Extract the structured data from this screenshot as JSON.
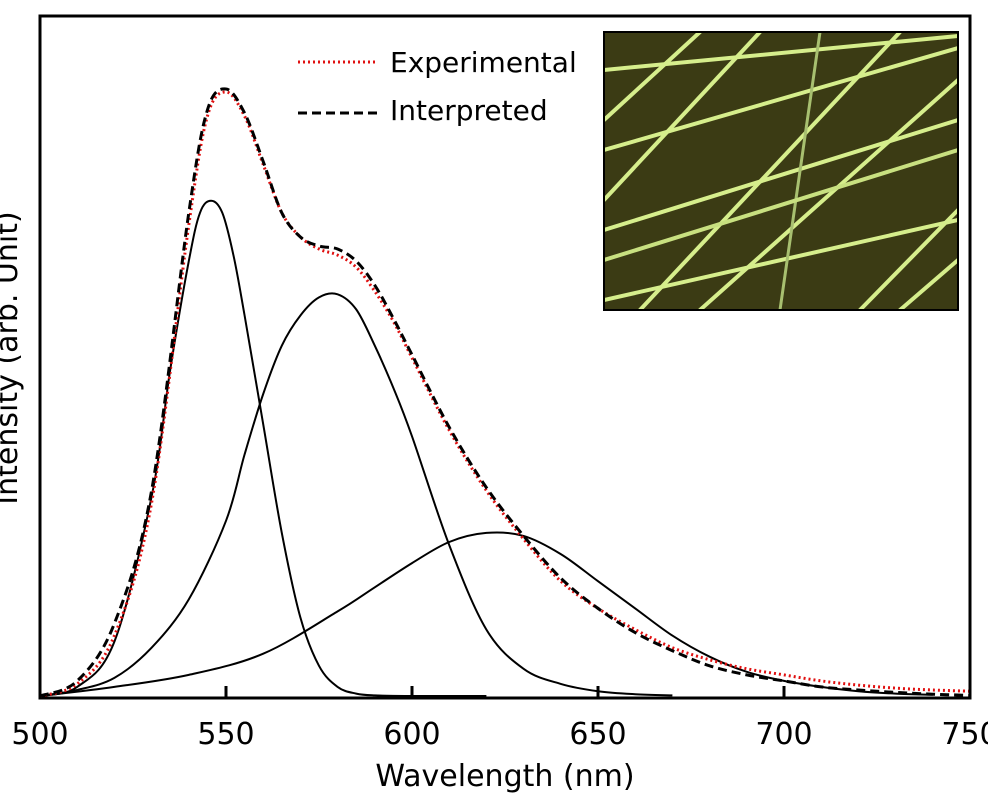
{
  "chart_data": {
    "type": "line",
    "title": "",
    "xlabel": "Wavelength (nm)",
    "ylabel": "Intensity (arb. Unit)",
    "xlim": [
      500,
      750
    ],
    "ylim": [
      0,
      1.04
    ],
    "xticks": [
      500,
      550,
      600,
      650,
      700,
      750
    ],
    "xtick_labels": [
      "500",
      "550",
      "600",
      "650",
      "700",
      "750"
    ],
    "yticks_shown": false,
    "grid": false,
    "legend": {
      "position": "top-center",
      "entries": [
        "Experimental",
        "Interpreted"
      ]
    },
    "inset": {
      "description_type": "micrograph",
      "colors": [
        "#3a3a12",
        "#d8f08a"
      ]
    },
    "series": [
      {
        "name": "Experimental",
        "style": "dotted",
        "color": "#e01010",
        "x": [
          500,
          510,
          520,
          530,
          540,
          545,
          550,
          555,
          560,
          565,
          570,
          575,
          580,
          585,
          590,
          595,
          600,
          610,
          620,
          630,
          640,
          650,
          660,
          670,
          680,
          690,
          700,
          710,
          720,
          730,
          740,
          750
        ],
        "y": [
          0.0,
          0.02,
          0.1,
          0.32,
          0.78,
          0.96,
          1.0,
          0.96,
          0.88,
          0.8,
          0.76,
          0.74,
          0.73,
          0.71,
          0.67,
          0.62,
          0.56,
          0.44,
          0.34,
          0.26,
          0.19,
          0.145,
          0.11,
          0.08,
          0.06,
          0.045,
          0.035,
          0.025,
          0.018,
          0.013,
          0.01,
          0.008
        ]
      },
      {
        "name": "Interpreted",
        "style": "dashed",
        "color": "#000000",
        "x": [
          500,
          510,
          520,
          530,
          540,
          545,
          550,
          555,
          560,
          565,
          570,
          575,
          580,
          585,
          590,
          595,
          600,
          610,
          620,
          630,
          640,
          650,
          660,
          670,
          680,
          690,
          700,
          710,
          720,
          730,
          740,
          750
        ],
        "y": [
          0.0,
          0.025,
          0.12,
          0.34,
          0.8,
          0.97,
          1.005,
          0.965,
          0.885,
          0.8,
          0.76,
          0.745,
          0.74,
          0.72,
          0.68,
          0.625,
          0.565,
          0.445,
          0.345,
          0.265,
          0.195,
          0.145,
          0.105,
          0.075,
          0.05,
          0.035,
          0.025,
          0.015,
          0.01,
          0.006,
          0.003,
          0.001
        ]
      },
      {
        "name": "",
        "style": "solid",
        "color": "#000000",
        "x": [
          500,
          510,
          520,
          530,
          535,
          540,
          543,
          546,
          549,
          552,
          555,
          560,
          565,
          570,
          575,
          580,
          585,
          590,
          600,
          610,
          620
        ],
        "y": [
          0.0,
          0.015,
          0.09,
          0.33,
          0.54,
          0.72,
          0.8,
          0.82,
          0.8,
          0.73,
          0.63,
          0.45,
          0.27,
          0.13,
          0.05,
          0.015,
          0.004,
          0.001,
          0.0,
          0.0,
          0.0
        ]
      },
      {
        "name": "",
        "style": "solid",
        "color": "#000000",
        "x": [
          500,
          510,
          520,
          530,
          540,
          550,
          555,
          560,
          565,
          570,
          575,
          580,
          585,
          590,
          595,
          600,
          610,
          620,
          630,
          640,
          650,
          660,
          670
        ],
        "y": [
          0.0,
          0.01,
          0.03,
          0.08,
          0.16,
          0.29,
          0.4,
          0.5,
          0.58,
          0.63,
          0.66,
          0.665,
          0.64,
          0.58,
          0.51,
          0.43,
          0.25,
          0.11,
          0.045,
          0.02,
          0.008,
          0.003,
          0.001
        ]
      },
      {
        "name": "",
        "style": "solid",
        "color": "#000000",
        "x": [
          500,
          520,
          540,
          560,
          580,
          590,
          600,
          610,
          620,
          630,
          640,
          650,
          660,
          670,
          680,
          690,
          700,
          710,
          720,
          730,
          740
        ],
        "y": [
          0.0,
          0.015,
          0.035,
          0.07,
          0.14,
          0.18,
          0.22,
          0.255,
          0.27,
          0.265,
          0.235,
          0.19,
          0.145,
          0.1,
          0.065,
          0.04,
          0.025,
          0.015,
          0.008,
          0.004,
          0.002
        ]
      }
    ]
  }
}
